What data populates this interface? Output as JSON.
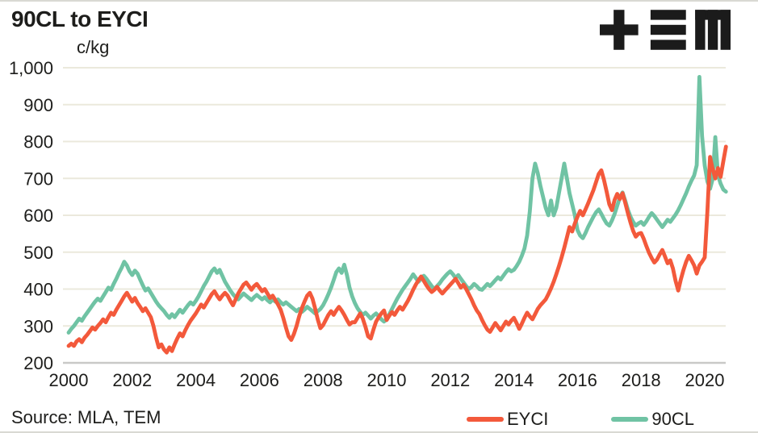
{
  "title": "90CL to EYCI",
  "unit_label": "c/kg",
  "source_note": "Source: MLA, TEM",
  "logo": {
    "name": "TEM logo",
    "color": "#1b1b1b"
  },
  "colors": {
    "text": "#1d1d1b",
    "grid": "#ebe9dc",
    "axis": "#c9c9c7",
    "background": "#ffffff",
    "eyci": "#f3593b",
    "ninetycl": "#70c3a4"
  },
  "chart_data": {
    "type": "line",
    "title": "90CL to EYCI",
    "ylabel": "c/kg",
    "xlabel": "",
    "ylim": [
      200,
      1000
    ],
    "xlim": [
      2000,
      2020.75
    ],
    "grid": "horizontal",
    "legend_position": "bottom",
    "x_start_year": 2000,
    "points_per_year": 12,
    "yticks": [
      {
        "v": 1000,
        "label": "1,000"
      },
      {
        "v": 900,
        "label": "900"
      },
      {
        "v": 800,
        "label": "800"
      },
      {
        "v": 700,
        "label": "700"
      },
      {
        "v": 600,
        "label": "600"
      },
      {
        "v": 500,
        "label": "500"
      },
      {
        "v": 400,
        "label": "400"
      },
      {
        "v": 300,
        "label": "300"
      },
      {
        "v": 200,
        "label": "200"
      }
    ],
    "xticks": [
      {
        "v": 2000,
        "label": "2000"
      },
      {
        "v": 2002,
        "label": "2002"
      },
      {
        "v": 2004,
        "label": "2004"
      },
      {
        "v": 2006,
        "label": "2006"
      },
      {
        "v": 2008,
        "label": "2008"
      },
      {
        "v": 2010,
        "label": "2010"
      },
      {
        "v": 2012,
        "label": "2012"
      },
      {
        "v": 2014,
        "label": "2014"
      },
      {
        "v": 2016,
        "label": "2016"
      },
      {
        "v": 2018,
        "label": "2018"
      },
      {
        "v": 2020,
        "label": "2020"
      }
    ],
    "series": [
      {
        "name": "EYCI",
        "color": "#f3593b",
        "unit": "c/kg",
        "frequency": "monthly (Jan 2000 - Sep 2020, estimated from plot)",
        "values": [
          246,
          252,
          246,
          258,
          264,
          256,
          268,
          276,
          286,
          296,
          290,
          300,
          308,
          318,
          310,
          324,
          336,
          330,
          344,
          356,
          368,
          380,
          390,
          378,
          366,
          376,
          362,
          352,
          340,
          348,
          336,
          324,
          300,
          268,
          242,
          250,
          236,
          228,
          242,
          232,
          250,
          266,
          280,
          272,
          288,
          302,
          314,
          324,
          334,
          346,
          358,
          350,
          362,
          374,
          386,
          394,
          382,
          372,
          382,
          390,
          382,
          368,
          356,
          372,
          388,
          400,
          412,
          418,
          408,
          398,
          408,
          414,
          404,
          394,
          400,
          388,
          376,
          382,
          370,
          358,
          344,
          322,
          296,
          272,
          262,
          278,
          300,
          326,
          348,
          366,
          382,
          390,
          374,
          348,
          318,
          294,
          302,
          316,
          330,
          340,
          330,
          342,
          352,
          342,
          330,
          316,
          304,
          310,
          310,
          322,
          334,
          320,
          298,
          272,
          266,
          290,
          312,
          324,
          334,
          342,
          316,
          328,
          338,
          330,
          342,
          352,
          344,
          356,
          368,
          382,
          398,
          412,
          424,
          434,
          422,
          410,
          400,
          392,
          398,
          406,
          396,
          388,
          396,
          404,
          412,
          420,
          428,
          416,
          404,
          412,
          400,
          386,
          372,
          356,
          342,
          332,
          316,
          302,
          290,
          284,
          296,
          308,
          298,
          288,
          300,
          312,
          304,
          314,
          322,
          308,
          292,
          306,
          322,
          336,
          326,
          318,
          332,
          346,
          356,
          364,
          372,
          386,
          402,
          420,
          440,
          462,
          486,
          512,
          540,
          568,
          556,
          578,
          596,
          612,
          600,
          616,
          632,
          650,
          668,
          690,
          712,
          722,
          696,
          664,
          630,
          614,
          642,
          658,
          644,
          660,
          634,
          606,
          580,
          558,
          542,
          550,
          552,
          536,
          516,
          498,
          484,
          472,
          480,
          494,
          506,
          488,
          470,
          478,
          456,
          422,
          396,
          426,
          452,
          474,
          490,
          478,
          464,
          442,
          464,
          474,
          486,
          610,
          758,
          726,
          700,
          728,
          704,
          746,
          786
        ]
      },
      {
        "name": "90CL",
        "color": "#70c3a4",
        "unit": "c/kg",
        "frequency": "monthly (Jan 2000 - Sep 2020, estimated from plot)",
        "values": [
          282,
          292,
          300,
          310,
          320,
          314,
          326,
          336,
          346,
          356,
          366,
          374,
          368,
          380,
          392,
          404,
          398,
          414,
          428,
          444,
          458,
          474,
          464,
          448,
          438,
          450,
          442,
          426,
          410,
          396,
          402,
          390,
          378,
          366,
          356,
          348,
          340,
          330,
          322,
          332,
          324,
          334,
          344,
          336,
          346,
          356,
          364,
          358,
          368,
          380,
          394,
          408,
          420,
          434,
          448,
          456,
          444,
          452,
          436,
          420,
          408,
          396,
          386,
          378,
          372,
          380,
          388,
          382,
          376,
          370,
          378,
          384,
          378,
          372,
          378,
          370,
          364,
          372,
          366,
          372,
          364,
          358,
          364,
          358,
          352,
          346,
          340,
          346,
          338,
          344,
          352,
          346,
          340,
          334,
          340,
          346,
          356,
          370,
          386,
          404,
          424,
          446,
          456,
          444,
          466,
          438,
          404,
          380,
          362,
          348,
          338,
          330,
          336,
          328,
          320,
          328,
          334,
          326,
          318,
          312,
          318,
          332,
          346,
          360,
          374,
          386,
          398,
          408,
          418,
          428,
          440,
          430,
          420,
          428,
          436,
          428,
          418,
          408,
          400,
          408,
          416,
          426,
          434,
          442,
          448,
          440,
          430,
          438,
          428,
          418,
          408,
          400,
          406,
          414,
          408,
          400,
          398,
          406,
          414,
          408,
          416,
          424,
          432,
          426,
          436,
          446,
          454,
          448,
          452,
          462,
          474,
          490,
          510,
          545,
          610,
          700,
          740,
          715,
          680,
          650,
          620,
          600,
          640,
          600,
          620,
          660,
          700,
          740,
          700,
          660,
          630,
          600,
          560,
          545,
          538,
          552,
          568,
          582,
          596,
          608,
          616,
          604,
          590,
          578,
          572,
          586,
          604,
          626,
          648,
          662,
          640,
          615,
          596,
          582,
          572,
          578,
          582,
          574,
          584,
          596,
          606,
          598,
          588,
          578,
          568,
          578,
          588,
          582,
          592,
          602,
          614,
          628,
          644,
          660,
          678,
          694,
          708,
          736,
          975,
          815,
          735,
          692,
          672,
          698,
          812,
          708,
          686,
          670,
          664
        ]
      }
    ]
  }
}
